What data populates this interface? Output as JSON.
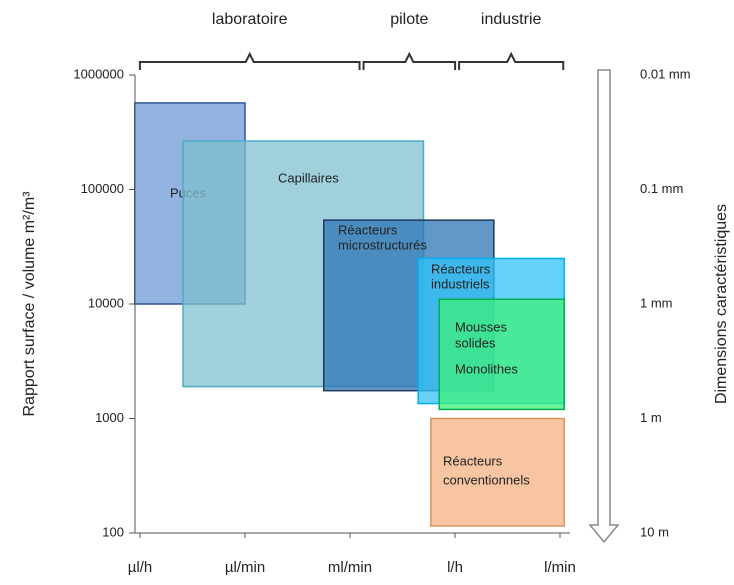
{
  "chart_data": {
    "type": "range",
    "ylabel": "Rapport surface / volume m²/m³",
    "y2label": "Dimensions caractéristiques",
    "log_y": true,
    "ylim": [
      100,
      1000000
    ],
    "yticks": [
      100,
      1000,
      10000,
      100000,
      1000000
    ],
    "categories": [
      "µl/h",
      "µl/min",
      "ml/min",
      "l/h",
      "l/min"
    ],
    "right_labels": [
      {
        "value": 1000000,
        "label": "0.01 mm"
      },
      {
        "value": 100000,
        "label": "0.1 mm"
      },
      {
        "value": 10000,
        "label": "1 mm"
      },
      {
        "value": 1000,
        "label": "1 m"
      },
      {
        "value": 100,
        "label": "10 m"
      }
    ],
    "phases": [
      {
        "name": "laboratoire",
        "x": [
          -0.02,
          2.11
        ]
      },
      {
        "name": "pilote",
        "x": [
          2.11,
          3.02
        ]
      },
      {
        "name": "industrie",
        "x": [
          3.02,
          4.05
        ]
      }
    ],
    "regions": [
      {
        "labels": [
          "Puces"
        ],
        "x": [
          -0.05,
          1.0
        ],
        "y": [
          10000,
          570000
        ],
        "color": "#6f9ad6",
        "border": "#2f5597"
      },
      {
        "labels": [
          "Capillaires"
        ],
        "x": [
          0.41,
          2.7
        ],
        "y": [
          1900,
          265000
        ],
        "color": "#7fc0cf",
        "border": "#4bacc6"
      },
      {
        "labels": [
          "Réacteurs",
          "microstructurés"
        ],
        "x": [
          1.75,
          3.37
        ],
        "y": [
          1750,
          54000
        ],
        "color": "#2e75b6",
        "border": "#1f3864"
      },
      {
        "labels": [
          "Réacteurs",
          "industriels"
        ],
        "x": [
          2.65,
          4.04
        ],
        "y": [
          1350,
          25000
        ],
        "color": "#33c3f5",
        "border": "#00b0f0"
      },
      {
        "labels": [
          "Mousses",
          "solides",
          "Monolithes"
        ],
        "x": [
          2.85,
          4.04
        ],
        "y": [
          1200,
          11000
        ],
        "color": "#3ff07a",
        "border": "#00b050"
      },
      {
        "labels": [
          "Réacteurs",
          "conventionnels"
        ],
        "x": [
          2.77,
          4.04
        ],
        "y": [
          115,
          1000
        ],
        "color": "#f4b183",
        "border": "#d9945f"
      }
    ]
  }
}
